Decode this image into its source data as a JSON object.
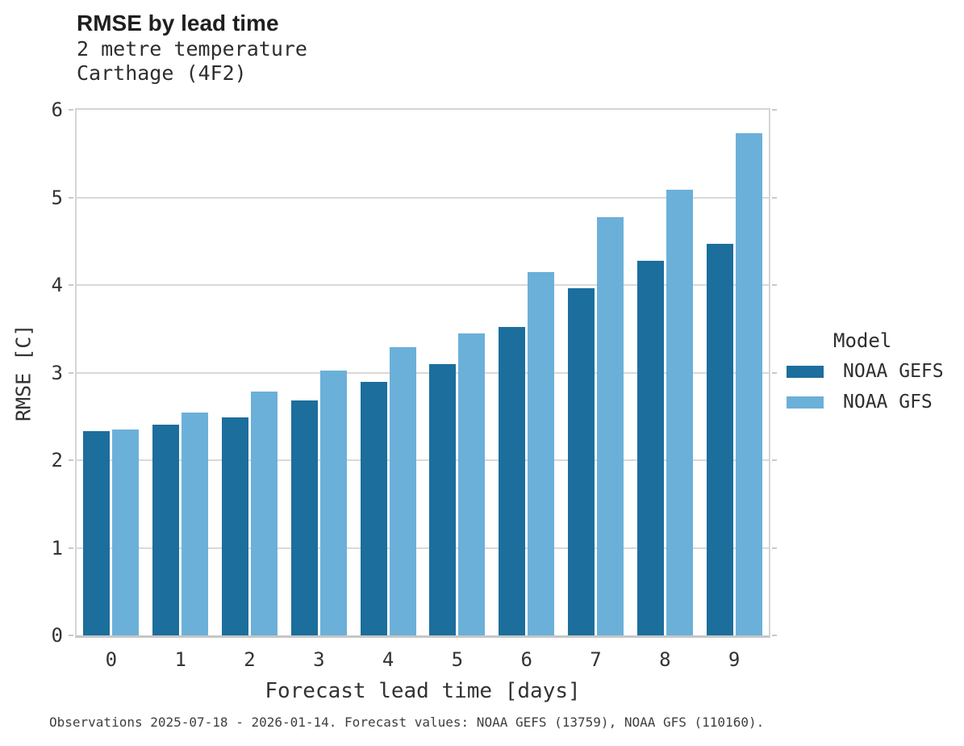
{
  "header": {
    "title": "RMSE by lead time",
    "subtitle_line1": "2 metre temperature",
    "subtitle_line2": "Carthage (4F2)"
  },
  "chart_data": {
    "type": "bar",
    "categories": [
      "0",
      "1",
      "2",
      "3",
      "4",
      "5",
      "6",
      "7",
      "8",
      "9"
    ],
    "series": [
      {
        "name": "NOAA GEFS",
        "color": "#1C6E9D",
        "values": [
          2.33,
          2.41,
          2.49,
          2.68,
          2.89,
          3.1,
          3.52,
          3.96,
          4.28,
          4.47
        ]
      },
      {
        "name": "NOAA GFS",
        "color": "#6BB0D9",
        "values": [
          2.35,
          2.54,
          2.78,
          3.02,
          3.29,
          3.45,
          4.15,
          4.77,
          5.09,
          5.73
        ]
      }
    ],
    "title": "RMSE by lead time",
    "subtitle": [
      "2 metre temperature",
      "Carthage (4F2)"
    ],
    "xlabel": "Forecast lead time [days]",
    "ylabel": "RMSE [C]",
    "ylim": [
      0,
      6
    ],
    "yticks": [
      0,
      1,
      2,
      3,
      4,
      5,
      6
    ],
    "grid": true,
    "legend_title": "Model",
    "legend_position": "right",
    "colors": {
      "gridline": "#d9d9d9",
      "axis_border": "#d5d5d5",
      "baseline": "#c6c6c6"
    }
  },
  "caption": "Observations 2025-07-18 - 2026-01-14. Forecast values: NOAA GEFS (13759), NOAA GFS (110160)."
}
